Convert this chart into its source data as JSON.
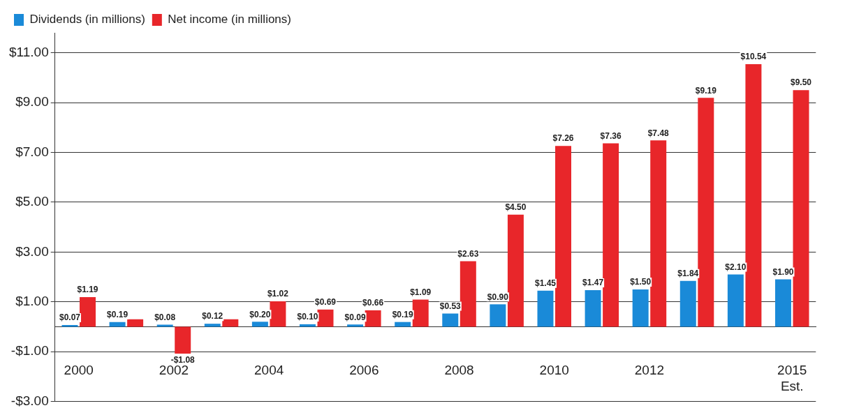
{
  "chart_data": {
    "type": "bar",
    "categories": [
      "2000",
      null,
      "2002",
      null,
      "2004",
      null,
      "2006",
      null,
      "2008",
      null,
      "2010",
      null,
      "2012",
      null,
      null,
      "2015 Est."
    ],
    "series": [
      {
        "name": "Dividends (in millions)",
        "color": "#1a8ad8",
        "values": [
          0.07,
          0.19,
          0.08,
          0.12,
          0.2,
          0.1,
          0.09,
          0.19,
          0.53,
          0.9,
          1.45,
          1.47,
          1.5,
          1.84,
          2.1,
          1.9
        ],
        "value_labels": [
          "$0.07",
          "$0.19",
          "$0.08",
          "$0.12",
          "$0.20",
          "$0.10",
          "$0.09",
          "$0.19",
          "$0.53",
          "$0.90",
          "$1.45",
          "$1.47",
          "$1.50",
          "$1.84",
          "$2.10",
          "$1.90"
        ]
      },
      {
        "name": "Net income (in millions)",
        "color": "#e8262a",
        "values": [
          1.19,
          0.3,
          -1.08,
          0.3,
          1.02,
          0.69,
          0.66,
          1.09,
          2.63,
          4.5,
          7.26,
          7.36,
          7.48,
          9.19,
          10.54,
          9.5
        ],
        "value_labels": [
          "$1.19",
          null,
          "-$1.08",
          null,
          "$1.02",
          "$0.69",
          "$0.66",
          "$1.09",
          "$2.63",
          "$4.50",
          "$7.26",
          "$7.36",
          "$7.48",
          "$9.19",
          "$10.54",
          "$9.50"
        ]
      }
    ],
    "ylim": [
      -3,
      11.8
    ],
    "yticks": [
      {
        "value": -3,
        "label": "-$3.00"
      },
      {
        "value": -1,
        "label": "-$1.00"
      },
      {
        "value": 1,
        "label": "$1.00"
      },
      {
        "value": 3,
        "label": "$3.00"
      },
      {
        "value": 5,
        "label": "$5.00"
      },
      {
        "value": 7,
        "label": "$7.00"
      },
      {
        "value": 9,
        "label": "$9.00"
      },
      {
        "value": 11,
        "label": "$11.00"
      }
    ],
    "grid": "y",
    "legend": "top"
  }
}
